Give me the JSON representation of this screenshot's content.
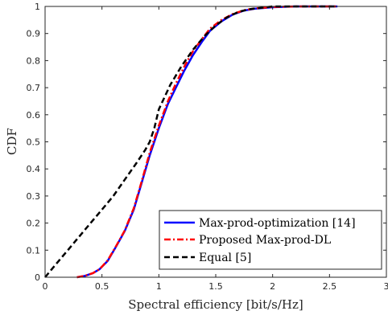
{
  "chart_data": {
    "type": "line",
    "title": "",
    "xlabel": "Spectral efficiency [bit/s/Hz]",
    "ylabel": "CDF",
    "xlim": [
      0,
      3
    ],
    "ylim": [
      0,
      1
    ],
    "xticks": [
      0,
      0.5,
      1,
      1.5,
      2,
      2.5,
      3
    ],
    "xtick_labels": [
      "0",
      "0.5",
      "1",
      "1.5",
      "2",
      "2.5",
      "3"
    ],
    "yticks": [
      0,
      0.1,
      0.2,
      0.3,
      0.4,
      0.5,
      0.6,
      0.7,
      0.8,
      0.9,
      1
    ],
    "ytick_labels": [
      "0",
      "0.1",
      "0.2",
      "0.3",
      "0.4",
      "0.5",
      "0.6",
      "0.7",
      "0.8",
      "0.9",
      "1"
    ],
    "grid": false,
    "legend_position": "bottom-right",
    "series": [
      {
        "name": "Max-prod-optimization [14]",
        "color": "#0000ff",
        "line_style": "solid",
        "x": [
          0.28,
          0.35,
          0.42,
          0.48,
          0.55,
          0.62,
          0.7,
          0.78,
          0.85,
          0.92,
          1.0,
          1.08,
          1.15,
          1.22,
          1.3,
          1.38,
          1.45,
          1.55,
          1.65,
          1.75,
          1.85,
          2.0,
          2.2,
          2.4,
          2.57
        ],
        "y": [
          0,
          0.005,
          0.015,
          0.03,
          0.06,
          0.11,
          0.17,
          0.25,
          0.35,
          0.45,
          0.55,
          0.64,
          0.7,
          0.76,
          0.82,
          0.87,
          0.91,
          0.945,
          0.97,
          0.985,
          0.992,
          0.997,
          1,
          1,
          1
        ]
      },
      {
        "name": "Proposed Max-prod-DL",
        "color": "#ff0000",
        "line_style": "dashdot",
        "x": [
          0.28,
          0.35,
          0.42,
          0.48,
          0.55,
          0.62,
          0.7,
          0.78,
          0.85,
          0.92,
          1.0,
          1.08,
          1.15,
          1.22,
          1.3,
          1.38,
          1.45,
          1.55,
          1.65,
          1.75,
          1.85,
          2.0,
          2.2,
          2.4,
          2.57
        ],
        "y": [
          0,
          0.005,
          0.015,
          0.03,
          0.062,
          0.112,
          0.172,
          0.255,
          0.355,
          0.46,
          0.56,
          0.65,
          0.715,
          0.775,
          0.835,
          0.88,
          0.918,
          0.95,
          0.972,
          0.986,
          0.993,
          0.998,
          1,
          1,
          1
        ]
      },
      {
        "name": "Equal [5]",
        "color": "#000000",
        "line_style": "dashed",
        "x": [
          0.0,
          0.1,
          0.2,
          0.3,
          0.4,
          0.5,
          0.6,
          0.7,
          0.8,
          0.88,
          0.92,
          0.96,
          1.0,
          1.1,
          1.2,
          1.3,
          1.4,
          1.5,
          1.6,
          1.7,
          1.8,
          2.0,
          2.2,
          2.57
        ],
        "y": [
          0.0,
          0.05,
          0.1,
          0.15,
          0.2,
          0.25,
          0.3,
          0.36,
          0.42,
          0.47,
          0.5,
          0.55,
          0.62,
          0.71,
          0.78,
          0.84,
          0.89,
          0.93,
          0.96,
          0.98,
          0.99,
          1.0,
          1.0,
          1.0
        ]
      }
    ]
  }
}
